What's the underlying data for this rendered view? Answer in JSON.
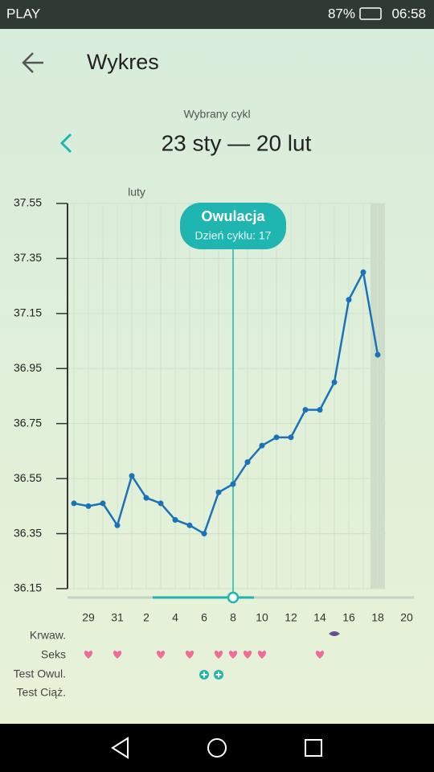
{
  "status_bar": {
    "carrier": "PLAY",
    "battery": "87%",
    "time": "06:58"
  },
  "header": {
    "title": "Wykres"
  },
  "cycle": {
    "label": "Wybrany cykl",
    "range": "23 sty — 20 lut"
  },
  "chart": {
    "type": "line",
    "month_label": "luty",
    "color": "#1a72b8",
    "categories": [
      null,
      "29",
      null,
      "31",
      null,
      "2",
      null,
      "4",
      null,
      "6",
      null,
      "8",
      null,
      "10",
      null,
      "12",
      null,
      "14",
      null,
      "16",
      null,
      "18",
      null,
      "20"
    ],
    "values": [
      36.46,
      36.45,
      36.46,
      36.38,
      36.56,
      36.48,
      36.46,
      36.4,
      36.38,
      36.35,
      36.5,
      36.53,
      36.61,
      36.67,
      36.7,
      36.7,
      36.8,
      36.8,
      36.9,
      37.2,
      37.3,
      37.0,
      null,
      null
    ],
    "ylim": [
      36.15,
      37.55
    ],
    "yticks": [
      36.15,
      36.35,
      36.55,
      36.75,
      36.95,
      37.15,
      37.35,
      37.55
    ],
    "grid": true,
    "annotation": {
      "title": "Owulacja",
      "subtitle": "Dzień cyklu: 17"
    }
  },
  "rows": [
    "Krwaw.",
    "Seks",
    "Test Owul.",
    "Test Ciąż."
  ]
}
